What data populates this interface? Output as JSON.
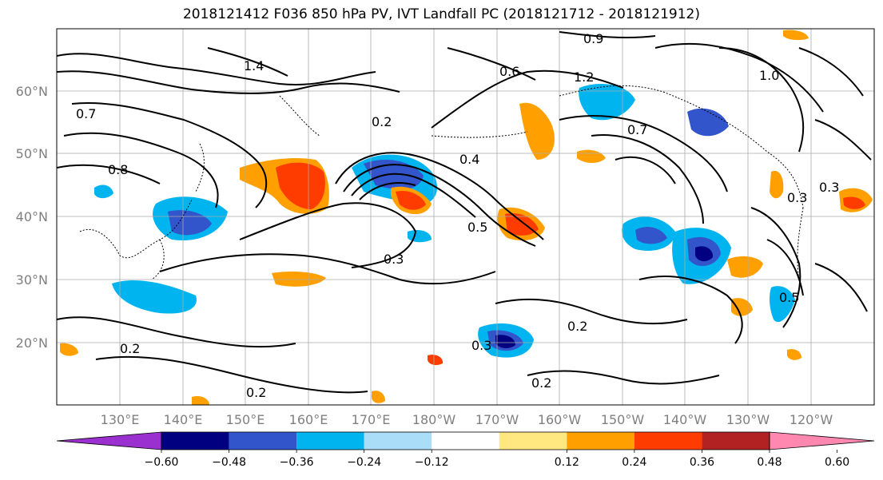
{
  "title": "2018121412 F036 850 hPa PV, IVT Landfall PC (2018121712 - 2018121912)",
  "lat_labels": [
    "60°N",
    "50°N",
    "40°N",
    "30°N",
    "20°N"
  ],
  "lon_labels": [
    "130°E",
    "140°E",
    "150°E",
    "160°E",
    "170°E",
    "180°W",
    "170°W",
    "160°W",
    "150°W",
    "140°W",
    "130°W",
    "120°W"
  ],
  "colorbar": {
    "ticks": [
      "−0.60",
      "−0.48",
      "−0.36",
      "−0.24",
      "−0.12",
      "0.12",
      "0.24",
      "0.36",
      "0.48",
      "0.60"
    ],
    "colors": [
      "#9b30d0",
      "#000080",
      "#3355cc",
      "#00b4f0",
      "#aaddf8",
      "#ffffff",
      "#ffe880",
      "#ffa000",
      "#ff3c00",
      "#b22222",
      "#ff88b0"
    ]
  },
  "contour_labels": [
    "0.2",
    "0.3",
    "0.4",
    "0.5",
    "0.7",
    "0.8",
    "1.2",
    "1.4",
    "0.6",
    "0.9",
    "1.0",
    "0.3",
    "0.2",
    "0.2",
    "0.2",
    "0.3",
    "0.2",
    "0.5",
    "0.7",
    "0.3"
  ]
}
